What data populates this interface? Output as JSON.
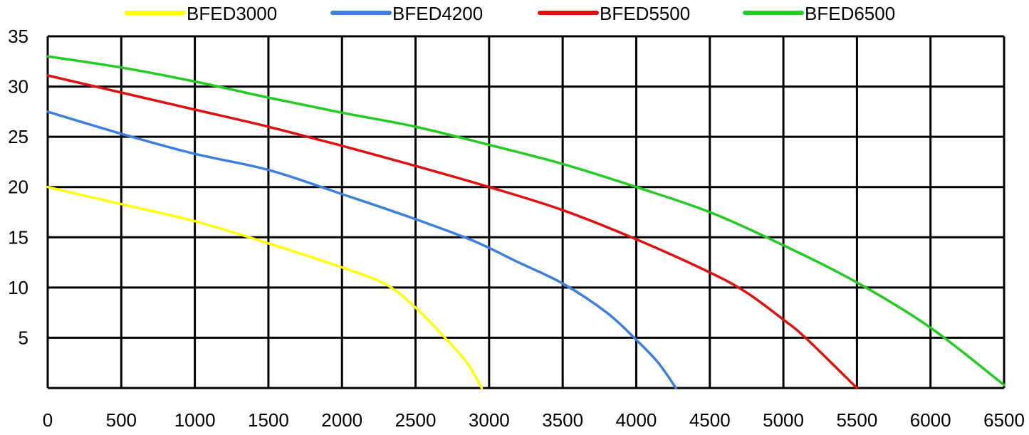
{
  "chart_data": {
    "type": "line",
    "title": "",
    "xlabel": "",
    "ylabel": "",
    "xlim": [
      0,
      6500
    ],
    "ylim": [
      0,
      35
    ],
    "x_ticks": [
      0,
      500,
      1000,
      1500,
      2000,
      2500,
      3000,
      3500,
      4000,
      4500,
      5000,
      5500,
      6000,
      6500
    ],
    "x_tick_labels": [
      "0",
      "500",
      "1000",
      "1500",
      "2000",
      "2500",
      "3000",
      "3500",
      "4000",
      "4500",
      "5000",
      "5500",
      "6000",
      "6500"
    ],
    "y_ticks": [
      5,
      10,
      15,
      20,
      25,
      30,
      35
    ],
    "y_tick_labels": [
      "5",
      "10",
      "15",
      "20",
      "25",
      "30",
      "35"
    ],
    "grid": true,
    "legend_position": "top",
    "series": [
      {
        "name": "BFED3000",
        "color": "#ffff00",
        "x": [
          0,
          500,
          1000,
          1500,
          2000,
          2300,
          2500,
          2700,
          2850,
          2950
        ],
        "y": [
          20,
          18.3,
          16.6,
          14.4,
          12,
          10.3,
          8,
          5,
          2.5,
          0
        ]
      },
      {
        "name": "BFED4200",
        "color": "#3d7fe0",
        "x": [
          0,
          500,
          1000,
          1500,
          2000,
          2500,
          2900,
          3200,
          3500,
          3800,
          4000,
          4150,
          4270
        ],
        "y": [
          27.5,
          25.3,
          23.3,
          21.7,
          19.3,
          16.8,
          14.6,
          12.5,
          10.4,
          7.5,
          4.8,
          2.5,
          0
        ]
      },
      {
        "name": "BFED5500",
        "color": "#e01010",
        "x": [
          0,
          500,
          1000,
          1500,
          2000,
          2500,
          3000,
          3500,
          4000,
          4500,
          4750,
          5000,
          5150,
          5500
        ],
        "y": [
          31.1,
          29.4,
          27.7,
          26,
          24.1,
          22.1,
          20,
          17.7,
          14.8,
          11.5,
          9.5,
          6.8,
          5,
          0
        ]
      },
      {
        "name": "BFED6500",
        "color": "#22cc22",
        "x": [
          0,
          500,
          1000,
          1500,
          2000,
          2500,
          3000,
          3500,
          4000,
          4500,
          5000,
          5500,
          6000,
          6500
        ],
        "y": [
          33,
          31.9,
          30.5,
          28.9,
          27.4,
          26,
          24.2,
          22.3,
          20,
          17.5,
          14.2,
          10.5,
          6,
          0.3
        ]
      }
    ]
  }
}
